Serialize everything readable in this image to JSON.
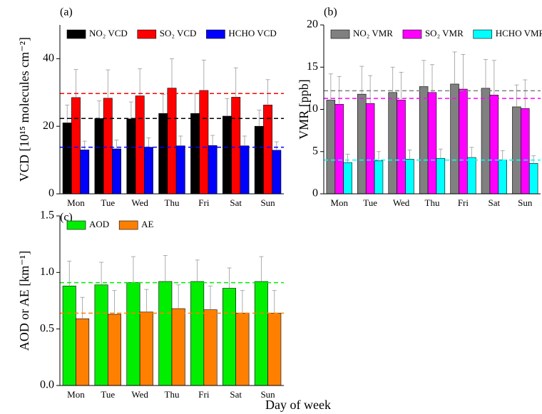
{
  "x_label": "Day of week",
  "chart_data": [
    {
      "type": "bar",
      "panel_label": "(a)",
      "ylabel": "VCD [10¹⁵ molecules cm⁻²]",
      "categories": [
        "Mon",
        "Tue",
        "Wed",
        "Thu",
        "Fri",
        "Sat",
        "Sun"
      ],
      "series": [
        {
          "name": "NO₂ VCD",
          "color": "#000000",
          "values": [
            21,
            22.3,
            22.2,
            23.8,
            23.8,
            23,
            20
          ],
          "errors": [
            5.3,
            5.2,
            5,
            5.6,
            5.8,
            5.2,
            4.8
          ]
        },
        {
          "name": "SO₂ VCD",
          "color": "#ff0000",
          "values": [
            28.5,
            28.3,
            29,
            31.3,
            30.6,
            28.6,
            26.3
          ],
          "errors": [
            8.3,
            8.4,
            8,
            8.7,
            9,
            8.7,
            7.5
          ]
        },
        {
          "name": "HCHO VCD",
          "color": "#0000ff",
          "values": [
            13,
            13.3,
            13.8,
            14.2,
            14.3,
            14.2,
            12.9
          ],
          "errors": [
            2.6,
            2.6,
            2.8,
            2.9,
            3,
            2.9,
            2.5
          ]
        }
      ],
      "reference_lines": [
        {
          "value": 29.7,
          "color": "#ff0000"
        },
        {
          "value": 22.3,
          "color": "#000000"
        },
        {
          "value": 13.8,
          "color": "#0000ff"
        }
      ],
      "ylim": [
        0,
        50
      ],
      "yticks": [
        0,
        20,
        40
      ],
      "legend": "upper left"
    },
    {
      "type": "bar",
      "panel_label": "(b)",
      "ylabel": "VMR [ppb]",
      "categories": [
        "Mon",
        "Tue",
        "Wed",
        "Thu",
        "Fri",
        "Sat",
        "Sun"
      ],
      "series": [
        {
          "name": "NO₂ VMR",
          "color": "#808080",
          "values": [
            11.1,
            11.8,
            12.0,
            12.7,
            13.0,
            12.5,
            10.3
          ],
          "errors": [
            3.1,
            3.3,
            3.0,
            3.1,
            3.8,
            3.4,
            2.6
          ]
        },
        {
          "name": "SO₂ VMR",
          "color": "#ff00ff",
          "values": [
            10.6,
            10.7,
            11.1,
            12.0,
            12.4,
            11.7,
            10.1
          ],
          "errors": [
            3.3,
            3.3,
            3.3,
            3.3,
            4.1,
            4.1,
            3.4
          ]
        },
        {
          "name": "HCHO VMR",
          "color": "#00ffff",
          "values": [
            3.7,
            3.9,
            4.1,
            4.2,
            4.3,
            4.0,
            3.6
          ],
          "errors": [
            1.0,
            1.1,
            1.1,
            1.1,
            1.2,
            1.1,
            0.9
          ]
        }
      ],
      "reference_lines": [
        {
          "value": 12.2,
          "color": "#808080"
        },
        {
          "value": 11.3,
          "color": "#ff00ff"
        },
        {
          "value": 4.0,
          "color": "#00ffff"
        }
      ],
      "ylim": [
        0,
        20
      ],
      "yticks": [
        0,
        5,
        10,
        15,
        20
      ],
      "legend": "upper left"
    },
    {
      "type": "bar",
      "panel_label": "(c)",
      "ylabel": "AOD or AE [km⁻¹]",
      "categories": [
        "Mon",
        "Tue",
        "Wed",
        "Thu",
        "Fri",
        "Sat",
        "Sun"
      ],
      "series": [
        {
          "name": "AOD",
          "color": "#00ee00",
          "values": [
            0.88,
            0.89,
            0.91,
            0.92,
            0.92,
            0.86,
            0.92
          ],
          "errors": [
            0.22,
            0.2,
            0.23,
            0.23,
            0.19,
            0.18,
            0.22
          ]
        },
        {
          "name": "AE",
          "color": "#ff8000",
          "values": [
            0.59,
            0.63,
            0.65,
            0.68,
            0.67,
            0.64,
            0.64
          ],
          "errors": [
            0.19,
            0.21,
            0.2,
            0.21,
            0.21,
            0.2,
            0.2
          ]
        }
      ],
      "reference_lines": [
        {
          "value": 0.91,
          "color": "#00ee00"
        },
        {
          "value": 0.64,
          "color": "#ff8000"
        }
      ],
      "ylim": [
        0,
        1.5
      ],
      "yticks": [
        {
          "value": 0,
          "label": "0.0"
        },
        {
          "value": 0.5,
          "label": "0.5"
        },
        {
          "value": 1,
          "label": "1.0"
        },
        {
          "value": 1.5,
          "label": "1.5"
        }
      ],
      "legend": "upper left"
    }
  ]
}
